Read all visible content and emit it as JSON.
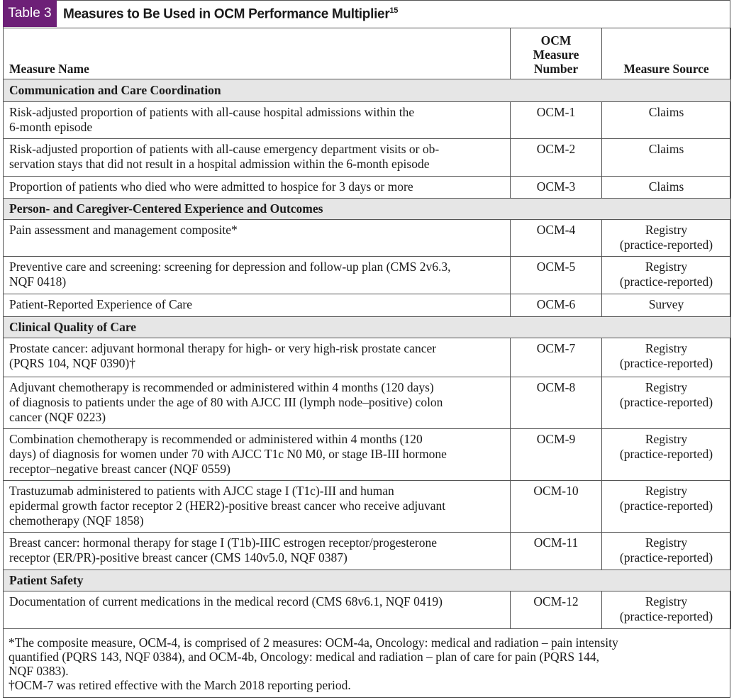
{
  "header": {
    "label": "Table 3",
    "title": "Measures to Be Used in OCM Performance Multiplier",
    "title_sup": "15"
  },
  "table": {
    "columns": [
      [
        "Measure Name"
      ],
      [
        "OCM",
        "Measure",
        "Number"
      ],
      [
        "Measure Source"
      ]
    ],
    "sections": [
      {
        "title": "Communication and Care Coordination",
        "rows": [
          {
            "measure": [
              "Risk-adjusted proportion of patients with all-cause hospital admissions within the",
              "6-month episode"
            ],
            "number": "OCM-1",
            "source": [
              "Claims"
            ]
          },
          {
            "measure": [
              "Risk-adjusted proportion of patients with all-cause emergency department visits or ob-",
              "servation stays that did not result in a hospital admission within the 6-month episode"
            ],
            "number": "OCM-2",
            "source": [
              "Claims"
            ]
          },
          {
            "measure": [
              "Proportion of patients who died who were admitted to hospice for 3 days or more"
            ],
            "number": "OCM-3",
            "source": [
              "Claims"
            ]
          }
        ]
      },
      {
        "title": "Person- and Caregiver-Centered Experience and Outcomes",
        "rows": [
          {
            "measure": [
              "Pain assessment and management composite*"
            ],
            "number": "OCM-4",
            "source": [
              "Registry",
              "(practice-reported)"
            ]
          },
          {
            "measure": [
              "Preventive care and screening: screening for depression and follow-up plan (CMS 2v6.3,",
              "NQF 0418)"
            ],
            "number": "OCM-5",
            "source": [
              "Registry",
              "(practice-reported)"
            ]
          },
          {
            "measure": [
              "Patient-Reported Experience of Care"
            ],
            "number": "OCM-6",
            "source": [
              "Survey"
            ]
          }
        ]
      },
      {
        "title": "Clinical Quality of Care",
        "rows": [
          {
            "measure": [
              "Prostate cancer: adjuvant hormonal therapy for high- or very high-risk prostate cancer",
              "(PQRS 104, NQF 0390)†"
            ],
            "number": "OCM-7",
            "source": [
              "Registry",
              "(practice-reported)"
            ]
          },
          {
            "measure": [
              "Adjuvant chemotherapy is recommended or administered within 4 months (120 days)",
              "of diagnosis to patients under the age of 80 with AJCC III (lymph node–positive) colon",
              "cancer (NQF 0223)"
            ],
            "number": "OCM-8",
            "source": [
              "Registry",
              "(practice-reported)"
            ]
          },
          {
            "measure": [
              "Combination chemotherapy is recommended or administered within 4 months (120",
              "days) of diagnosis for women under 70 with AJCC T1c N0 M0, or stage IB-III hormone",
              "receptor–negative breast cancer (NQF 0559)"
            ],
            "number": "OCM-9",
            "source": [
              "Registry",
              "(practice-reported)"
            ]
          },
          {
            "measure": [
              "Trastuzumab administered to patients with AJCC stage I (T1c)-III and human",
              "epidermal growth factor receptor 2 (HER2)-positive breast cancer who receive adjuvant",
              "chemotherapy (NQF 1858)"
            ],
            "number": "OCM-10",
            "source": [
              "Registry",
              "(practice-reported)"
            ]
          },
          {
            "measure": [
              "Breast cancer: hormonal therapy for stage I (T1b)-IIIC estrogen receptor/progesterone",
              "receptor (ER/PR)-positive breast cancer (CMS 140v5.0, NQF 0387)"
            ],
            "number": "OCM-11",
            "source": [
              "Registry",
              "(practice-reported)"
            ]
          }
        ]
      },
      {
        "title": "Patient Safety",
        "rows": [
          {
            "measure": [
              "Documentation of current medications in the medical record (CMS 68v6.1, NQF 0419)"
            ],
            "number": "OCM-12",
            "source": [
              "Registry",
              "(practice-reported)"
            ]
          }
        ]
      }
    ]
  },
  "footnotes": [
    [
      "*The composite measure, OCM-4, is comprised of 2 measures: OCM-4a, Oncology: medical and radiation – pain intensity",
      "quantified (PQRS 143, NQF 0384), and OCM-4b, Oncology: medical and radiation – plan of care for pain (PQRS 144,",
      "NQF 0383)."
    ],
    [
      "†OCM-7 was retired effective with the March 2018 reporting period."
    ]
  ]
}
